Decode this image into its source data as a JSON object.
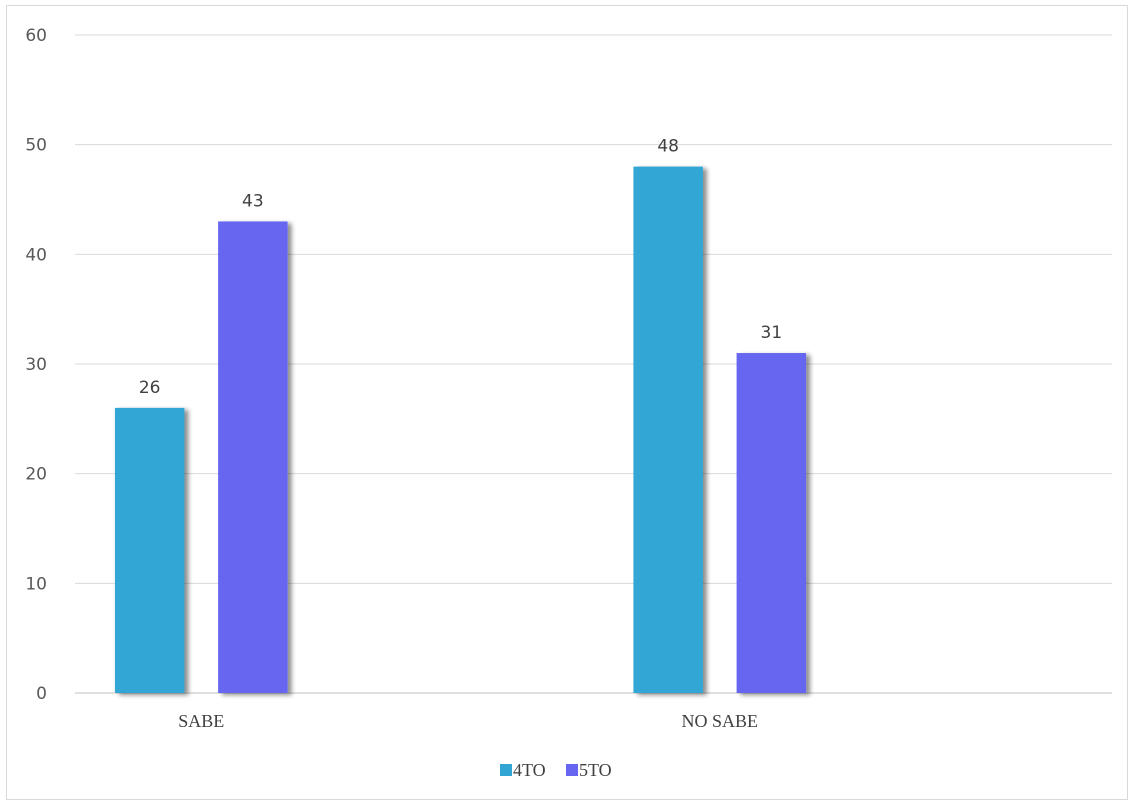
{
  "chart_data": {
    "type": "bar",
    "title": "",
    "xlabel": "",
    "ylabel": "",
    "categories": [
      "SABE",
      "NO SABE"
    ],
    "series": [
      {
        "name": "4TO",
        "values": [
          26,
          48
        ],
        "color": "#31a6d4"
      },
      {
        "name": "5TO",
        "values": [
          43,
          31
        ],
        "color": "#6666f0"
      }
    ],
    "ylim": [
      0,
      60
    ],
    "yticks": [
      "0",
      "10",
      "20",
      "30",
      "40",
      "50",
      "60"
    ],
    "data_labels": true,
    "grid": true,
    "legend_position": "bottom"
  }
}
